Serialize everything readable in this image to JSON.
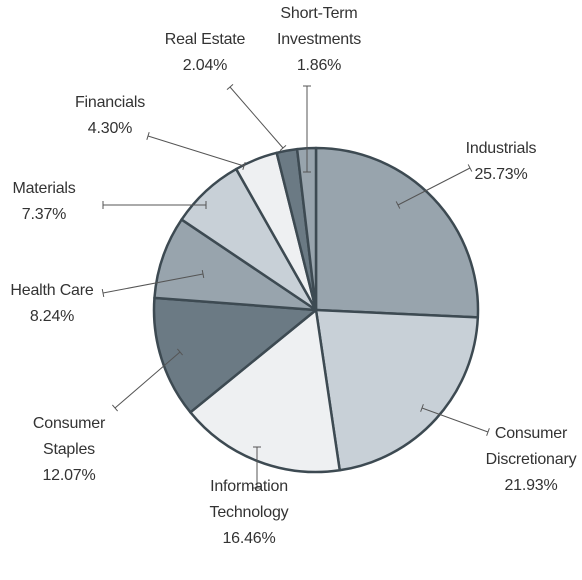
{
  "chart_data": {
    "type": "pie",
    "categories": [
      "Industrials",
      "Consumer\nDiscretionary",
      "Information\nTechnology",
      "Consumer\nStaples",
      "Health Care",
      "Materials",
      "Financials",
      "Real Estate",
      "Short-Term\nInvestments"
    ],
    "values": [
      25.73,
      21.93,
      16.46,
      12.07,
      8.24,
      7.37,
      4.3,
      2.04,
      1.86
    ],
    "value_labels": [
      "25.73%",
      "21.93%",
      "16.46%",
      "12.07%",
      "8.24%",
      "7.37%",
      "4.30%",
      "2.04%",
      "1.86%"
    ],
    "colors": [
      "#98a4ad",
      "#c8d0d7",
      "#eef0f2",
      "#6b7a84",
      "#98a4ad",
      "#c8d0d7",
      "#eef0f2",
      "#6b7a84",
      "#98a4ad"
    ]
  }
}
